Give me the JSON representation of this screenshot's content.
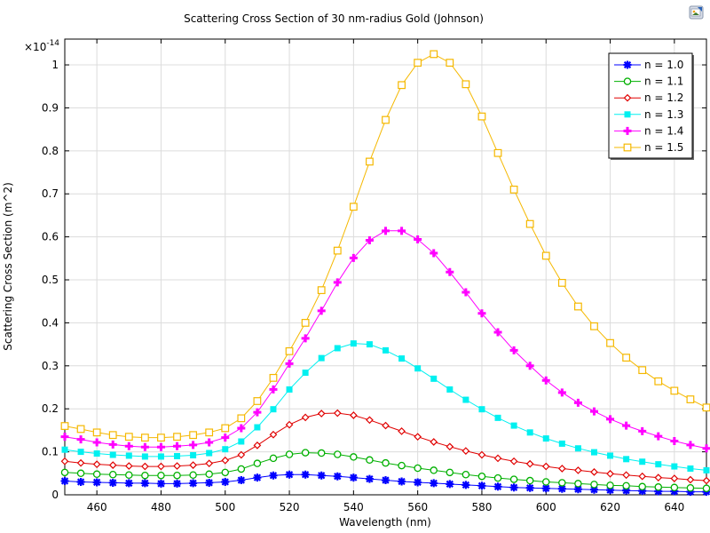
{
  "toolbar": {
    "icon": "image-export-icon"
  },
  "chart_data": {
    "type": "line",
    "title": "Scattering Cross Section of 30 nm-radius Gold (Johnson)",
    "xlabel": "Wavelength (nm)",
    "ylabel": "Scattering Cross Section (m^2)",
    "y_multiplier": "×10",
    "y_exponent": "-14",
    "xlim": [
      450,
      650
    ],
    "ylim": [
      0,
      1.06
    ],
    "grid": true,
    "legend_position": "top-right",
    "x_ticks": [
      460,
      480,
      500,
      520,
      540,
      560,
      580,
      600,
      620,
      640
    ],
    "y_ticks": [
      0,
      0.1,
      0.2,
      0.3,
      0.4,
      0.5,
      0.6,
      0.7,
      0.8,
      0.9,
      1
    ],
    "y_tick_labels": [
      "0",
      "0.1",
      "0.2",
      "0.3",
      "0.4",
      "0.5",
      "0.6",
      "0.7",
      "0.8",
      "0.9",
      "1"
    ],
    "x": [
      450,
      455,
      460,
      465,
      470,
      475,
      480,
      485,
      490,
      495,
      500,
      505,
      510,
      515,
      520,
      525,
      530,
      535,
      540,
      545,
      550,
      555,
      560,
      565,
      570,
      575,
      580,
      585,
      590,
      595,
      600,
      605,
      610,
      615,
      620,
      625,
      630,
      635,
      640,
      645,
      650
    ],
    "series": [
      {
        "name": "n = 1.0",
        "color": "#0000ff",
        "marker": "asterisk",
        "values": [
          0.032,
          0.03,
          0.029,
          0.028,
          0.027,
          0.027,
          0.026,
          0.026,
          0.027,
          0.028,
          0.03,
          0.034,
          0.04,
          0.045,
          0.047,
          0.047,
          0.045,
          0.043,
          0.04,
          0.037,
          0.034,
          0.031,
          0.029,
          0.027,
          0.025,
          0.023,
          0.021,
          0.019,
          0.017,
          0.016,
          0.015,
          0.014,
          0.013,
          0.012,
          0.011,
          0.01,
          0.009,
          0.008,
          0.008,
          0.007,
          0.007
        ]
      },
      {
        "name": "n = 1.1",
        "color": "#00b000",
        "marker": "circle",
        "values": [
          0.052,
          0.05,
          0.048,
          0.047,
          0.046,
          0.045,
          0.045,
          0.045,
          0.046,
          0.048,
          0.052,
          0.06,
          0.073,
          0.085,
          0.094,
          0.098,
          0.097,
          0.094,
          0.088,
          0.081,
          0.074,
          0.068,
          0.062,
          0.057,
          0.052,
          0.047,
          0.043,
          0.039,
          0.036,
          0.033,
          0.03,
          0.028,
          0.026,
          0.024,
          0.022,
          0.021,
          0.019,
          0.018,
          0.017,
          0.016,
          0.015
        ]
      },
      {
        "name": "n = 1.2",
        "color": "#e00000",
        "marker": "diamond",
        "values": [
          0.078,
          0.074,
          0.071,
          0.069,
          0.067,
          0.066,
          0.066,
          0.067,
          0.069,
          0.073,
          0.08,
          0.093,
          0.115,
          0.14,
          0.163,
          0.18,
          0.189,
          0.19,
          0.185,
          0.174,
          0.161,
          0.148,
          0.135,
          0.123,
          0.112,
          0.102,
          0.093,
          0.085,
          0.078,
          0.072,
          0.066,
          0.061,
          0.057,
          0.053,
          0.049,
          0.046,
          0.043,
          0.04,
          0.038,
          0.035,
          0.033
        ]
      },
      {
        "name": "n = 1.3",
        "color": "#00f0f0",
        "marker": "square",
        "values": [
          0.105,
          0.1,
          0.096,
          0.093,
          0.091,
          0.089,
          0.089,
          0.09,
          0.092,
          0.097,
          0.106,
          0.124,
          0.157,
          0.199,
          0.245,
          0.284,
          0.318,
          0.341,
          0.352,
          0.35,
          0.336,
          0.317,
          0.294,
          0.27,
          0.245,
          0.221,
          0.199,
          0.179,
          0.161,
          0.145,
          0.131,
          0.119,
          0.108,
          0.099,
          0.091,
          0.083,
          0.077,
          0.071,
          0.066,
          0.061,
          0.057
        ]
      },
      {
        "name": "n = 1.4",
        "color": "#ff00ff",
        "marker": "plus",
        "values": [
          0.135,
          0.129,
          0.122,
          0.117,
          0.113,
          0.111,
          0.111,
          0.113,
          0.116,
          0.122,
          0.133,
          0.155,
          0.192,
          0.245,
          0.305,
          0.364,
          0.428,
          0.494,
          0.551,
          0.592,
          0.614,
          0.614,
          0.594,
          0.562,
          0.518,
          0.471,
          0.422,
          0.378,
          0.336,
          0.3,
          0.266,
          0.238,
          0.214,
          0.194,
          0.176,
          0.161,
          0.148,
          0.136,
          0.125,
          0.116,
          0.108
        ]
      },
      {
        "name": "n = 1.5",
        "color": "#f5b800",
        "marker": "square-open",
        "values": [
          0.16,
          0.153,
          0.145,
          0.139,
          0.135,
          0.133,
          0.133,
          0.135,
          0.139,
          0.145,
          0.155,
          0.178,
          0.218,
          0.272,
          0.334,
          0.4,
          0.476,
          0.568,
          0.67,
          0.775,
          0.872,
          0.953,
          1.005,
          1.025,
          1.005,
          0.955,
          0.88,
          0.795,
          0.71,
          0.63,
          0.556,
          0.493,
          0.438,
          0.392,
          0.353,
          0.319,
          0.29,
          0.264,
          0.242,
          0.222,
          0.203
        ]
      }
    ]
  }
}
